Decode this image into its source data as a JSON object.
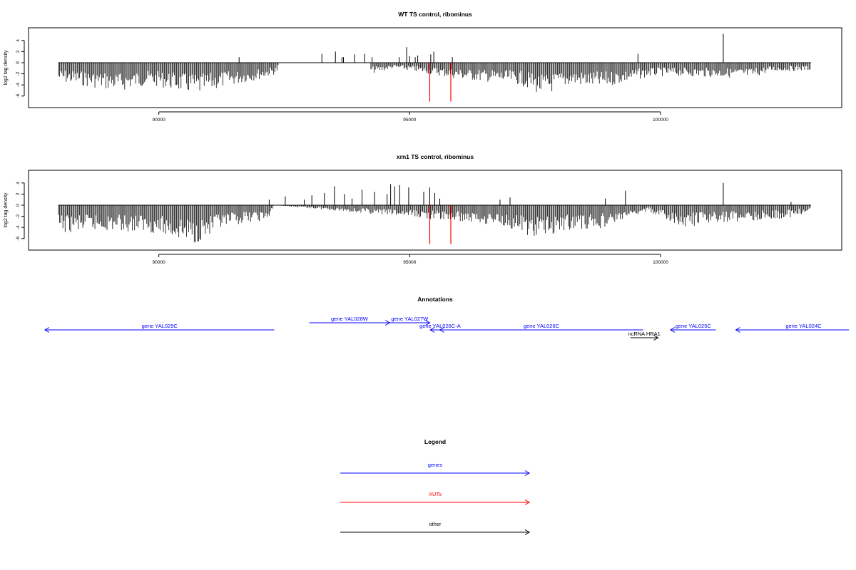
{
  "chart_data": [
    {
      "type": "bar",
      "title": "WT TS control, ribominus",
      "ylabel": "log2 tag density",
      "xlim": [
        88000,
        103000
      ],
      "ylim": [
        -7.5,
        5.5
      ],
      "xticks": [
        "90000",
        "95000",
        "100000"
      ],
      "yticks": [
        "4",
        "2",
        "0",
        "-2",
        "-4",
        "-6"
      ],
      "grid": false,
      "bar_color": "#000000",
      "highlight_color": "#ff0000",
      "highlight_bars": [
        {
          "x": 95400,
          "y": -7.0
        },
        {
          "x": 95820,
          "y": -7.0
        }
      ],
      "positive_bars": [
        {
          "x": 91600,
          "y": 1.0
        },
        {
          "x": 93250,
          "y": 1.6
        },
        {
          "x": 93520,
          "y": 2.0
        },
        {
          "x": 93650,
          "y": 1.0
        },
        {
          "x": 93680,
          "y": 1.0
        },
        {
          "x": 93900,
          "y": 1.5
        },
        {
          "x": 94100,
          "y": 1.6
        },
        {
          "x": 94250,
          "y": 1.0
        },
        {
          "x": 94790,
          "y": 1.0
        },
        {
          "x": 94940,
          "y": 2.8
        },
        {
          "x": 95000,
          "y": 1.2
        },
        {
          "x": 95110,
          "y": 1.0
        },
        {
          "x": 95160,
          "y": 1.3
        },
        {
          "x": 95420,
          "y": 1.5
        },
        {
          "x": 95480,
          "y": 2.0
        },
        {
          "x": 95850,
          "y": 1.0
        },
        {
          "x": 99550,
          "y": 1.6
        },
        {
          "x": 101250,
          "y": 5.2
        }
      ],
      "negative_envelope": [
        {
          "x": 88000,
          "y": -3.5
        },
        {
          "x": 89200,
          "y": -5.2
        },
        {
          "x": 89800,
          "y": -4.0
        },
        {
          "x": 90800,
          "y": -5.8
        },
        {
          "x": 91200,
          "y": -4.6
        },
        {
          "x": 92000,
          "y": -3.0
        },
        {
          "x": 92350,
          "y": -2.0
        },
        {
          "x": 92400,
          "y": 0
        },
        {
          "x": 94200,
          "y": 0
        },
        {
          "x": 94230,
          "y": -2.0
        },
        {
          "x": 94700,
          "y": -1.0
        },
        {
          "x": 96000,
          "y": -3.0
        },
        {
          "x": 97200,
          "y": -4.0
        },
        {
          "x": 97650,
          "y": -6.0
        },
        {
          "x": 98200,
          "y": -4.0
        },
        {
          "x": 98800,
          "y": -4.6
        },
        {
          "x": 99800,
          "y": -2.5
        },
        {
          "x": 100200,
          "y": -2.4
        },
        {
          "x": 101000,
          "y": -2.6
        },
        {
          "x": 101800,
          "y": -2.8
        },
        {
          "x": 102200,
          "y": -1.6
        },
        {
          "x": 103000,
          "y": -1.4
        }
      ]
    },
    {
      "type": "bar",
      "title": "xrn1 TS control, ribominus",
      "ylabel": "log2 tag density",
      "xlim": [
        88000,
        103000
      ],
      "ylim": [
        -7.5,
        5.5
      ],
      "xticks": [
        "90000",
        "95000",
        "100000"
      ],
      "yticks": [
        "4",
        "2",
        "0",
        "-2",
        "-4",
        "-6"
      ],
      "grid": false,
      "bar_color": "#000000",
      "highlight_color": "#ff0000",
      "highlight_bars": [
        {
          "x": 95400,
          "y": -7.0
        },
        {
          "x": 95820,
          "y": -7.0
        }
      ],
      "positive_bars": [
        {
          "x": 92200,
          "y": 1.0
        },
        {
          "x": 92520,
          "y": 1.6
        },
        {
          "x": 92900,
          "y": 1.0
        },
        {
          "x": 93050,
          "y": 1.8
        },
        {
          "x": 93300,
          "y": 2.2
        },
        {
          "x": 93500,
          "y": 3.4
        },
        {
          "x": 93700,
          "y": 2.0
        },
        {
          "x": 93850,
          "y": 1.2
        },
        {
          "x": 94050,
          "y": 2.8
        },
        {
          "x": 94300,
          "y": 2.4
        },
        {
          "x": 94550,
          "y": 2.0
        },
        {
          "x": 94620,
          "y": 3.8
        },
        {
          "x": 94700,
          "y": 3.4
        },
        {
          "x": 94800,
          "y": 3.6
        },
        {
          "x": 94980,
          "y": 3.2
        },
        {
          "x": 95280,
          "y": 2.4
        },
        {
          "x": 95400,
          "y": 3.2
        },
        {
          "x": 95500,
          "y": 2.2
        },
        {
          "x": 95600,
          "y": 1.2
        },
        {
          "x": 96800,
          "y": 1.0
        },
        {
          "x": 97000,
          "y": 1.4
        },
        {
          "x": 98900,
          "y": 1.2
        },
        {
          "x": 99300,
          "y": 2.6
        },
        {
          "x": 101250,
          "y": 4.0
        },
        {
          "x": 102600,
          "y": 0.6
        }
      ],
      "negative_envelope": [
        {
          "x": 88000,
          "y": -5.0
        },
        {
          "x": 89000,
          "y": -4.6
        },
        {
          "x": 89800,
          "y": -4.8
        },
        {
          "x": 90700,
          "y": -7.0
        },
        {
          "x": 91200,
          "y": -4.6
        },
        {
          "x": 91600,
          "y": -3.4
        },
        {
          "x": 92200,
          "y": -2.6
        },
        {
          "x": 92300,
          "y": 0
        },
        {
          "x": 96000,
          "y": -3.0
        },
        {
          "x": 96800,
          "y": -3.6
        },
        {
          "x": 97500,
          "y": -6.0
        },
        {
          "x": 98200,
          "y": -4.4
        },
        {
          "x": 98800,
          "y": -4.2
        },
        {
          "x": 99400,
          "y": -2.4
        },
        {
          "x": 99750,
          "y": -1.0
        },
        {
          "x": 100400,
          "y": -4.2
        },
        {
          "x": 101000,
          "y": -3.2
        },
        {
          "x": 101800,
          "y": -2.8
        },
        {
          "x": 102500,
          "y": -2.4
        },
        {
          "x": 103000,
          "y": -1.2
        }
      ]
    }
  ],
  "annotations": {
    "title": "Annotations",
    "features": [
      {
        "label": "gene YAL029C",
        "color": "#0000ff",
        "dir": "left",
        "start": 88000,
        "end": 92300,
        "row": 1
      },
      {
        "label": "gene YAL028W",
        "color": "#0000ff",
        "dir": "right",
        "start": 93000,
        "end": 94600,
        "row": 0
      },
      {
        "label": "gene YAL027W",
        "color": "#0000ff",
        "dir": "right",
        "start": 94600,
        "end": 95400,
        "row": 0
      },
      {
        "label": "gene YAL026C-A",
        "color": "#0000ff",
        "dir": "left",
        "start": 95410,
        "end": 95800,
        "row": 1
      },
      {
        "label": "gene YAL026C",
        "color": "#0000ff",
        "dir": "left",
        "start": 95600,
        "end": 99650,
        "row": 1
      },
      {
        "label": "ncRNA HRA1",
        "color": "#000000",
        "dir": "right",
        "start": 99400,
        "end": 99950,
        "row": 2
      },
      {
        "label": "gene YAL025C",
        "color": "#0000ff",
        "dir": "left",
        "start": 100200,
        "end": 101100,
        "row": 1
      },
      {
        "label": "gene YAL024C",
        "color": "#0000ff",
        "dir": "left",
        "start": 101500,
        "end": 104200,
        "row": 1
      }
    ]
  },
  "legend": {
    "title": "Legend",
    "items": [
      {
        "label": "genes",
        "color": "#0000ff"
      },
      {
        "label": "XUTs",
        "color": "#ff0000"
      },
      {
        "label": "other",
        "color": "#000000"
      }
    ]
  }
}
